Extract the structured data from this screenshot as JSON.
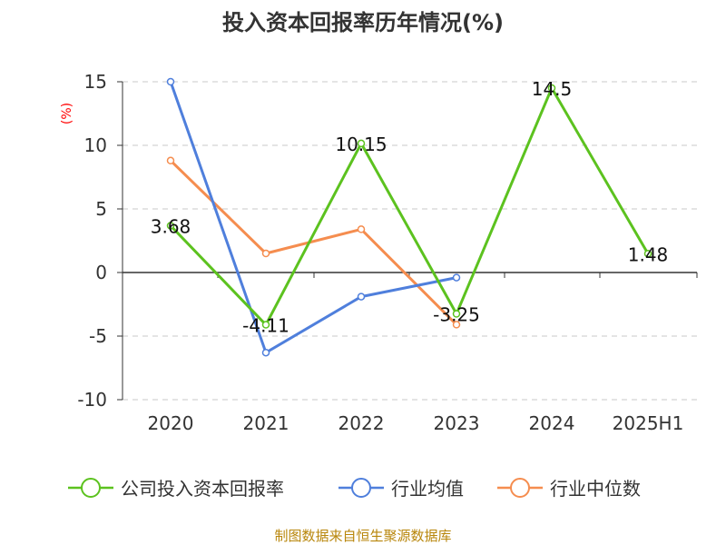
{
  "title": "投入资本回报率历年情况(%)",
  "source_note": "制图数据来自恒生聚源数据库",
  "chart_data": {
    "type": "line",
    "title": "投入资本回报率历年情况(%)",
    "ylabel": "(%)",
    "xlabel": "",
    "categories": [
      "2020",
      "2021",
      "2022",
      "2023",
      "2024",
      "2025H1"
    ],
    "ylim": [
      -10,
      15
    ],
    "yticks": [
      15,
      10,
      5,
      0,
      -5,
      -10
    ],
    "grid": true,
    "legend_position": "bottom",
    "series": [
      {
        "name": "公司投入资本回报率",
        "color": "#5cc21f",
        "values": [
          3.68,
          -4.11,
          10.15,
          -3.25,
          14.5,
          1.48
        ],
        "labels": [
          "3.68",
          "-4.11",
          "10.15",
          "-3.25",
          "14.5",
          "1.48"
        ]
      },
      {
        "name": "行业均值",
        "color": "#4f7fdc",
        "values": [
          15.0,
          -6.3,
          -1.9,
          -0.4,
          null,
          null
        ]
      },
      {
        "name": "行业中位数",
        "color": "#f58d4f",
        "values": [
          8.8,
          1.5,
          3.4,
          -4.1,
          null,
          null
        ]
      }
    ]
  }
}
